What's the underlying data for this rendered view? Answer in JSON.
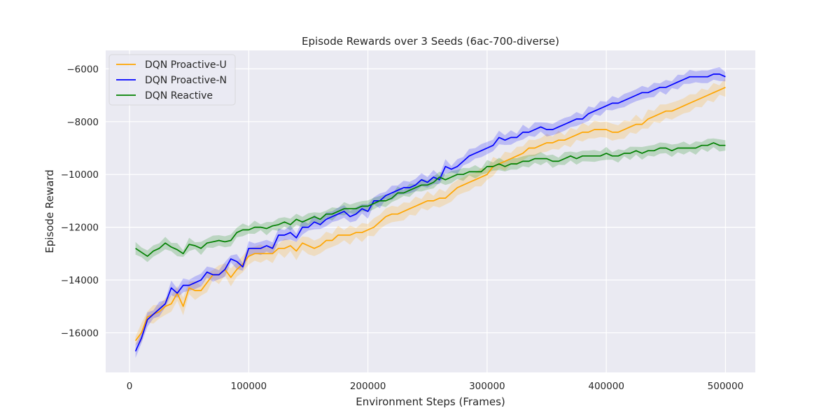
{
  "chart_data": {
    "type": "line",
    "title": "Episode Rewards over 3 Seeds (6ac-700-diverse)",
    "xlabel": "Environment Steps (Frames)",
    "ylabel": "Episode Reward",
    "xlim": [
      -20000,
      525000
    ],
    "ylim": [
      -17500,
      -5300
    ],
    "x_ticks": [
      0,
      100000,
      200000,
      300000,
      400000,
      500000
    ],
    "x_tick_labels": [
      "0",
      "100000",
      "200000",
      "300000",
      "400000",
      "500000"
    ],
    "y_ticks": [
      -16000,
      -14000,
      -12000,
      -10000,
      -8000,
      -6000
    ],
    "y_tick_labels": [
      "−16000",
      "−14000",
      "−12000",
      "−10000",
      "−8000",
      "−6000"
    ],
    "grid": true,
    "legend_position": "top-left",
    "x": [
      5000,
      10000,
      15000,
      20000,
      25000,
      30000,
      35000,
      40000,
      45000,
      50000,
      55000,
      60000,
      65000,
      70000,
      75000,
      80000,
      85000,
      90000,
      95000,
      100000,
      105000,
      110000,
      115000,
      120000,
      125000,
      130000,
      135000,
      140000,
      145000,
      150000,
      155000,
      160000,
      165000,
      170000,
      175000,
      180000,
      185000,
      190000,
      195000,
      200000,
      205000,
      210000,
      215000,
      220000,
      225000,
      230000,
      235000,
      240000,
      245000,
      250000,
      255000,
      260000,
      265000,
      270000,
      275000,
      280000,
      285000,
      290000,
      295000,
      300000,
      305000,
      310000,
      315000,
      320000,
      325000,
      330000,
      335000,
      340000,
      345000,
      350000,
      355000,
      360000,
      365000,
      370000,
      375000,
      380000,
      385000,
      390000,
      395000,
      400000,
      405000,
      410000,
      415000,
      420000,
      425000,
      430000,
      435000,
      440000,
      445000,
      450000,
      455000,
      460000,
      465000,
      470000,
      475000,
      480000,
      485000,
      490000,
      495000,
      500000
    ],
    "series": [
      {
        "name": "DQN Proactive-U",
        "color": "#ffa500",
        "values": [
          -16300,
          -16000,
          -15400,
          -15300,
          -15200,
          -15000,
          -14900,
          -14500,
          -15000,
          -14300,
          -14400,
          -14400,
          -14100,
          -13800,
          -13800,
          -13600,
          -13900,
          -13600,
          -13400,
          -13100,
          -13000,
          -13000,
          -13000,
          -13000,
          -12800,
          -12800,
          -12700,
          -12900,
          -12600,
          -12700,
          -12800,
          -12700,
          -12500,
          -12500,
          -12300,
          -12300,
          -12300,
          -12200,
          -12200,
          -12100,
          -12000,
          -11800,
          -11600,
          -11500,
          -11500,
          -11400,
          -11300,
          -11200,
          -11100,
          -11000,
          -11000,
          -10900,
          -10900,
          -10700,
          -10500,
          -10400,
          -10300,
          -10200,
          -10100,
          -10000,
          -9700,
          -9600,
          -9500,
          -9400,
          -9300,
          -9200,
          -9000,
          -9000,
          -8900,
          -8800,
          -8800,
          -8700,
          -8700,
          -8600,
          -8500,
          -8400,
          -8400,
          -8300,
          -8300,
          -8300,
          -8400,
          -8400,
          -8300,
          -8200,
          -8100,
          -8100,
          -7900,
          -7800,
          -7700,
          -7600,
          -7600,
          -7500,
          -7400,
          -7300,
          -7200,
          -7100,
          -7000,
          -6900,
          -6800,
          -6700
        ]
      },
      {
        "name": "DQN Proactive-N",
        "color": "#0000ff",
        "values": [
          -16700,
          -16200,
          -15500,
          -15300,
          -15100,
          -14900,
          -14300,
          -14500,
          -14200,
          -14200,
          -14100,
          -14000,
          -13700,
          -13800,
          -13800,
          -13600,
          -13200,
          -13300,
          -13500,
          -12800,
          -12800,
          -12800,
          -12700,
          -12800,
          -12300,
          -12300,
          -12200,
          -12400,
          -12000,
          -12000,
          -11800,
          -11900,
          -11700,
          -11600,
          -11500,
          -11400,
          -11600,
          -11500,
          -11300,
          -11400,
          -11000,
          -11000,
          -10800,
          -10700,
          -10600,
          -10500,
          -10500,
          -10400,
          -10200,
          -10300,
          -10100,
          -10200,
          -9700,
          -9800,
          -9700,
          -9500,
          -9300,
          -9200,
          -9100,
          -9000,
          -8900,
          -8600,
          -8700,
          -8600,
          -8600,
          -8400,
          -8400,
          -8300,
          -8200,
          -8300,
          -8300,
          -8200,
          -8100,
          -8000,
          -7900,
          -7900,
          -7700,
          -7600,
          -7500,
          -7400,
          -7300,
          -7300,
          -7200,
          -7100,
          -7000,
          -6900,
          -6900,
          -6800,
          -6700,
          -6700,
          -6600,
          -6500,
          -6400,
          -6300,
          -6300,
          -6300,
          -6300,
          -6200,
          -6200,
          -6300
        ]
      },
      {
        "name": "DQN Reactive",
        "color": "#008000",
        "values": [
          -12800,
          -12950,
          -13100,
          -12900,
          -12800,
          -12600,
          -12750,
          -12850,
          -13000,
          -12650,
          -12700,
          -12800,
          -12600,
          -12550,
          -12500,
          -12550,
          -12500,
          -12200,
          -12100,
          -12100,
          -12000,
          -12000,
          -12050,
          -11950,
          -11900,
          -11800,
          -11900,
          -11700,
          -11800,
          -11700,
          -11600,
          -11700,
          -11500,
          -11500,
          -11400,
          -11300,
          -11300,
          -11300,
          -11200,
          -11200,
          -11100,
          -11000,
          -11000,
          -10900,
          -10700,
          -10700,
          -10600,
          -10500,
          -10400,
          -10400,
          -10300,
          -10100,
          -10200,
          -10100,
          -10000,
          -10000,
          -9900,
          -9900,
          -9900,
          -9700,
          -9700,
          -9600,
          -9700,
          -9600,
          -9600,
          -9500,
          -9500,
          -9400,
          -9400,
          -9400,
          -9500,
          -9500,
          -9400,
          -9300,
          -9400,
          -9300,
          -9300,
          -9300,
          -9300,
          -9200,
          -9300,
          -9300,
          -9200,
          -9200,
          -9100,
          -9200,
          -9100,
          -9100,
          -9000,
          -9000,
          -9100,
          -9000,
          -9000,
          -9000,
          -9000,
          -8900,
          -8900,
          -8800,
          -8900,
          -8900
        ]
      }
    ]
  }
}
